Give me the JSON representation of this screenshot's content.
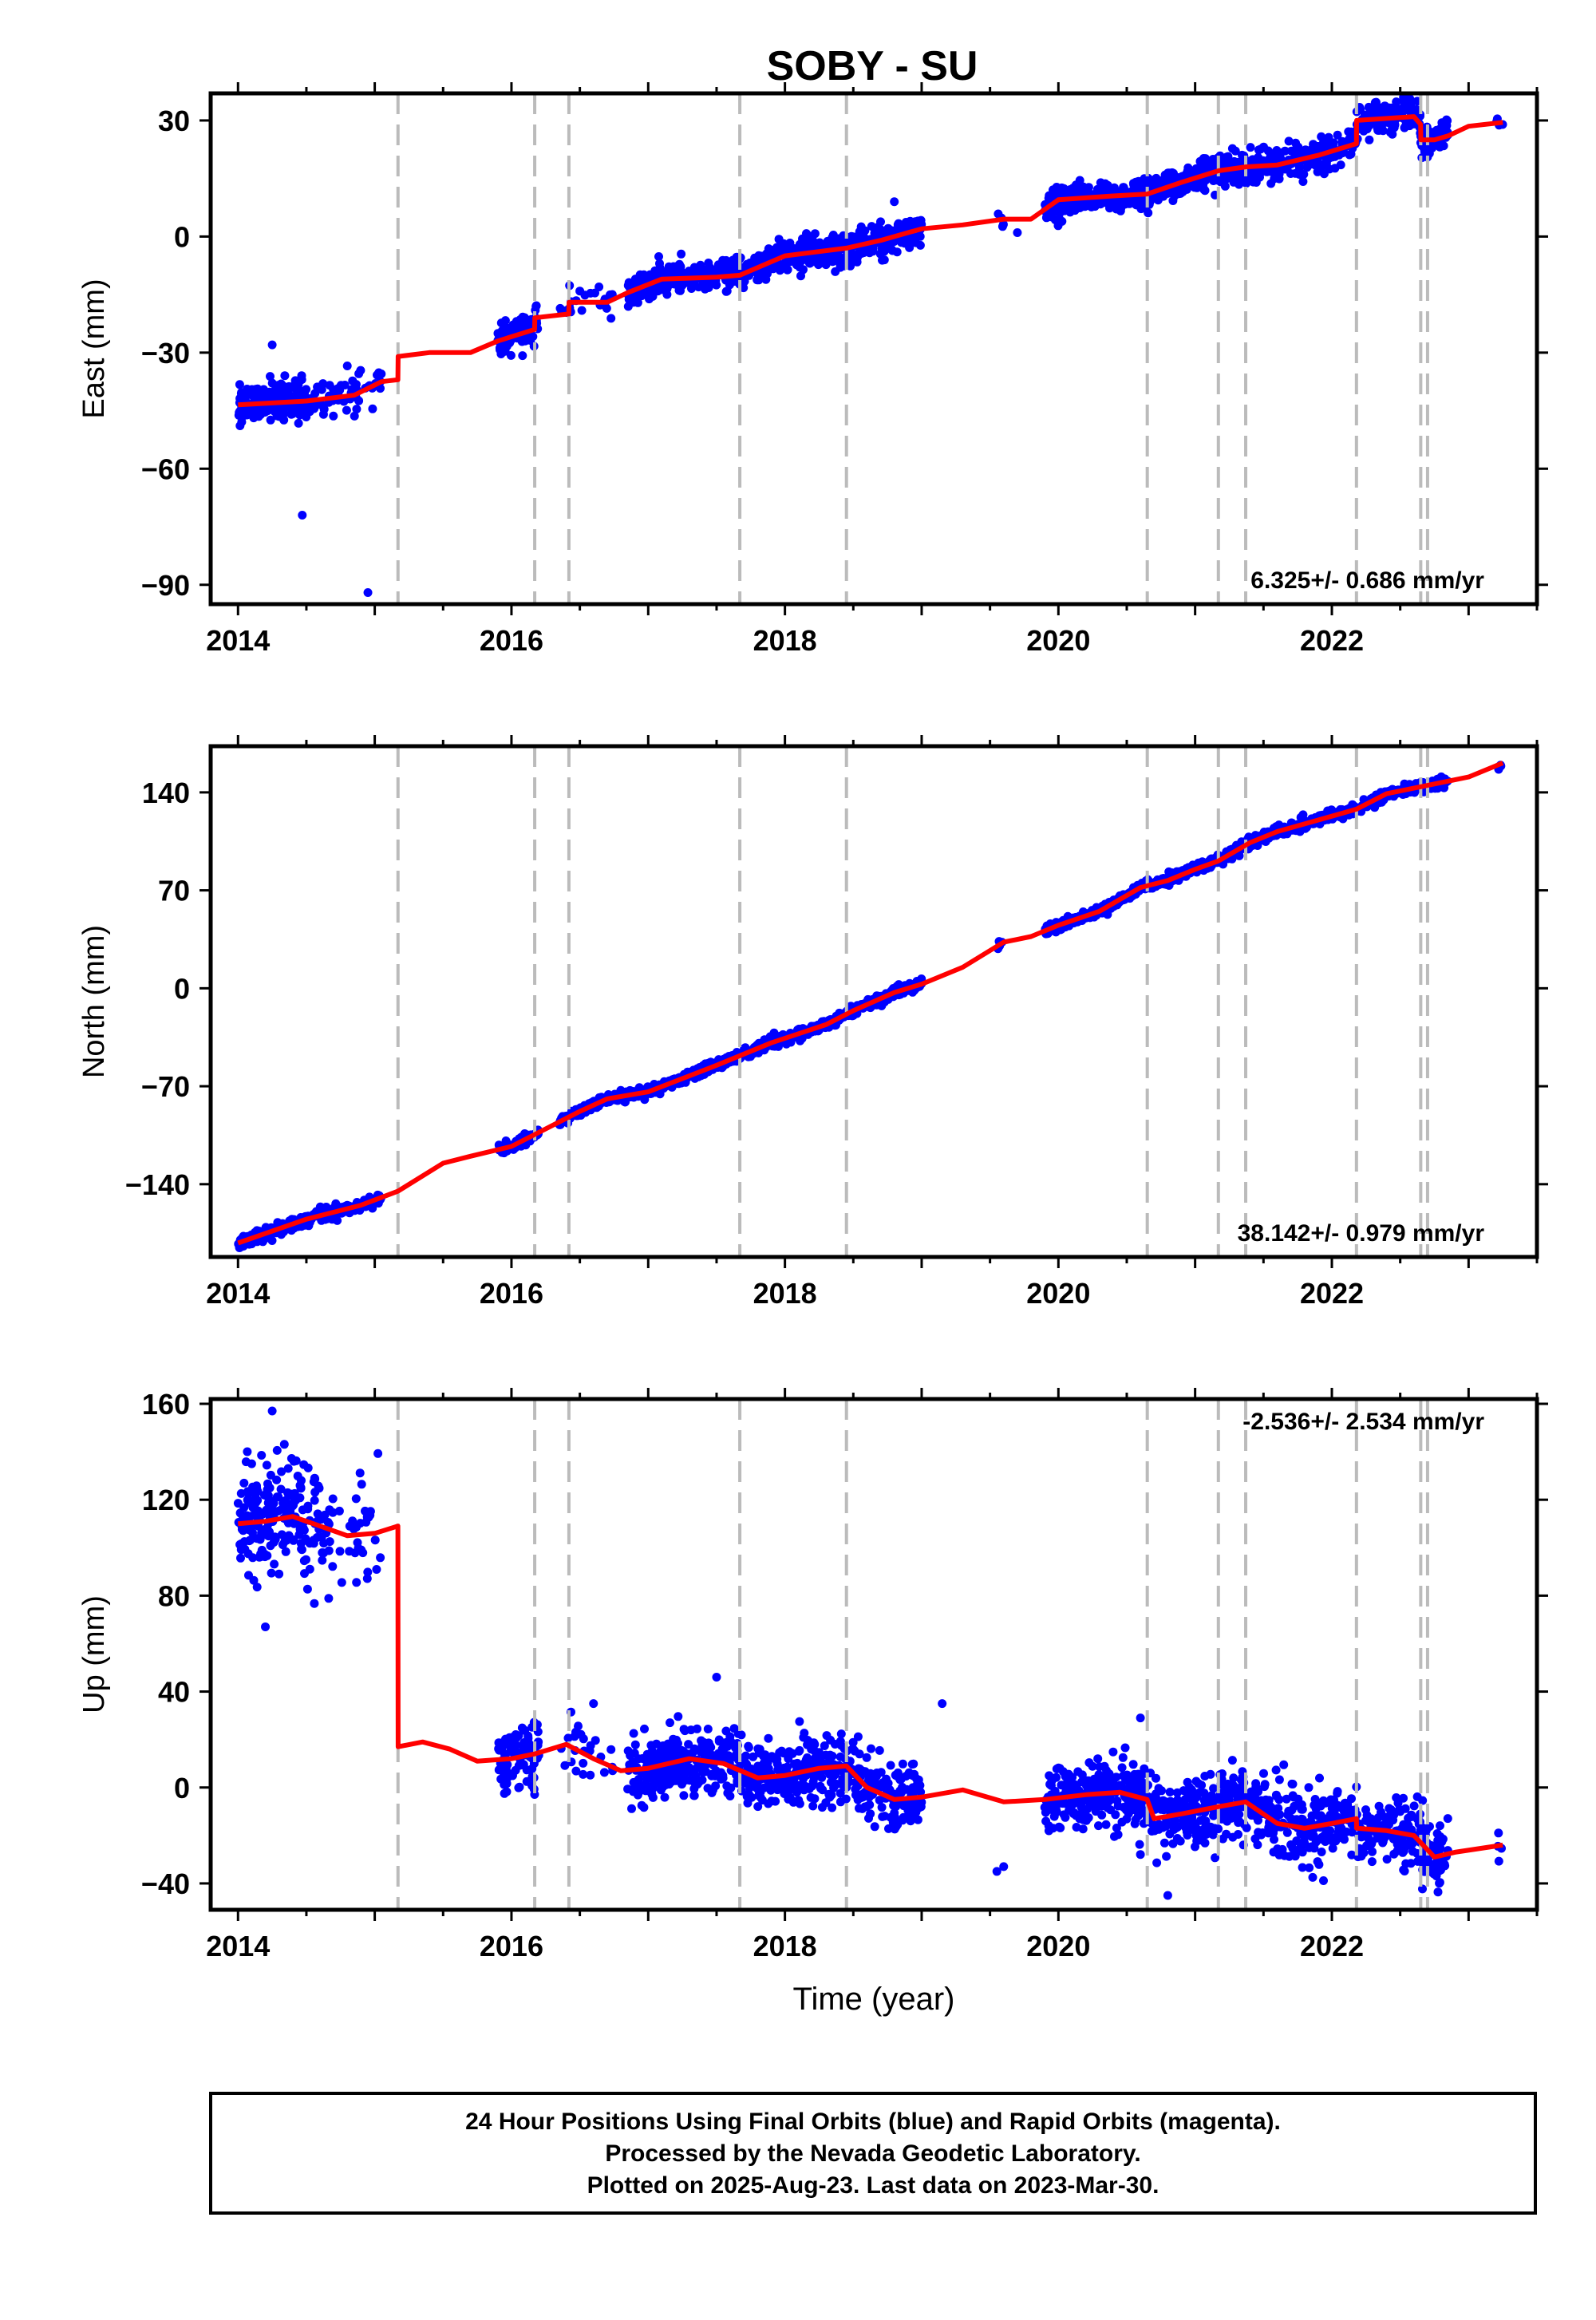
{
  "title": "SOBY - SU",
  "chart_data": [
    {
      "type": "scatter",
      "component": "east",
      "ylabel": "East (mm)",
      "yticks": [
        30,
        0,
        -30,
        -60,
        -90
      ],
      "ylim": [
        -95,
        37
      ],
      "xlim": [
        2013.8,
        2023.5
      ],
      "xticks": [
        2014,
        2016,
        2018,
        2020,
        2022
      ],
      "rate": "6.325+/- 0.686 mm/yr",
      "rate_pos": "bottom-right",
      "breaks": [
        2015.17,
        2016.17,
        2016.42,
        2017.67,
        2018.45,
        2020.65,
        2021.17,
        2021.37,
        2022.18,
        2022.65,
        2022.7
      ],
      "data_segments": [
        {
          "t0": 2014.0,
          "t1": 2015.05,
          "sparse_from": 2014.5,
          "scatter": 2.6
        },
        {
          "t0": 2015.9,
          "t1": 2016.2,
          "scatter": 2.0
        },
        {
          "t0": 2016.35,
          "t1": 2016.75,
          "sparse": true,
          "scatter": 1.8
        },
        {
          "t0": 2016.85,
          "t1": 2019.0,
          "scatter": 2.0
        },
        {
          "t0": 2019.55,
          "t1": 2019.6,
          "sparse": true,
          "scatter": 1.5
        },
        {
          "t0": 2019.9,
          "t1": 2022.85,
          "scatter": 2.0
        },
        {
          "t0": 2023.2,
          "t1": 2023.25,
          "sparse": true,
          "scatter": 2.0
        }
      ],
      "outliers": [
        {
          "x": 2014.47,
          "y": -72
        },
        {
          "x": 2014.95,
          "y": -92
        },
        {
          "x": 2014.25,
          "y": -28
        },
        {
          "x": 2018.8,
          "y": 9
        },
        {
          "x": 2019.7,
          "y": 1
        }
      ],
      "model": [
        {
          "x": 2014.0,
          "y": -43.5
        },
        {
          "x": 2014.5,
          "y": -42.5
        },
        {
          "x": 2014.85,
          "y": -41
        },
        {
          "x": 2015.05,
          "y": -37.5
        },
        {
          "x": 2015.169,
          "y": -37
        },
        {
          "x": 2015.171,
          "y": -31
        },
        {
          "x": 2015.4,
          "y": -30
        },
        {
          "x": 2015.7,
          "y": -30
        },
        {
          "x": 2015.9,
          "y": -27
        },
        {
          "x": 2016.169,
          "y": -24
        },
        {
          "x": 2016.171,
          "y": -21
        },
        {
          "x": 2016.419,
          "y": -20
        },
        {
          "x": 2016.421,
          "y": -17
        },
        {
          "x": 2016.7,
          "y": -17
        },
        {
          "x": 2016.85,
          "y": -14.5
        },
        {
          "x": 2017.1,
          "y": -11
        },
        {
          "x": 2017.5,
          "y": -10.5
        },
        {
          "x": 2017.67,
          "y": -10
        },
        {
          "x": 2018.0,
          "y": -5
        },
        {
          "x": 2018.45,
          "y": -3
        },
        {
          "x": 2018.7,
          "y": -1
        },
        {
          "x": 2019.0,
          "y": 2
        },
        {
          "x": 2019.3,
          "y": 3
        },
        {
          "x": 2019.6,
          "y": 4.5
        },
        {
          "x": 2019.8,
          "y": 4.5
        },
        {
          "x": 2020.0,
          "y": 9.5
        },
        {
          "x": 2020.4,
          "y": 10.5
        },
        {
          "x": 2020.65,
          "y": 11
        },
        {
          "x": 2020.9,
          "y": 14
        },
        {
          "x": 2021.17,
          "y": 17
        },
        {
          "x": 2021.37,
          "y": 18
        },
        {
          "x": 2021.6,
          "y": 18.5
        },
        {
          "x": 2021.9,
          "y": 21
        },
        {
          "x": 2022.18,
          "y": 24
        },
        {
          "x": 2022.181,
          "y": 30
        },
        {
          "x": 2022.6,
          "y": 31
        },
        {
          "x": 2022.649,
          "y": 29
        },
        {
          "x": 2022.651,
          "y": 25
        },
        {
          "x": 2022.75,
          "y": 25
        },
        {
          "x": 2022.85,
          "y": 26
        },
        {
          "x": 2023.0,
          "y": 28.5
        },
        {
          "x": 2023.25,
          "y": 29.5
        }
      ]
    },
    {
      "type": "scatter",
      "component": "north",
      "ylabel": "North (mm)",
      "yticks": [
        140,
        70,
        0,
        -70,
        -140
      ],
      "ylim": [
        -192,
        173
      ],
      "xlim": [
        2013.8,
        2023.5
      ],
      "xticks": [
        2014,
        2016,
        2018,
        2020,
        2022
      ],
      "rate": "38.142+/- 0.979 mm/yr",
      "rate_pos": "bottom-right",
      "breaks": [
        2015.17,
        2016.17,
        2016.42,
        2017.67,
        2018.45,
        2020.65,
        2021.17,
        2021.37,
        2022.18,
        2022.65,
        2022.7
      ],
      "data_segments": [
        {
          "t0": 2014.0,
          "t1": 2015.05,
          "scatter": 2.0
        },
        {
          "t0": 2015.9,
          "t1": 2016.2,
          "scatter": 1.8
        },
        {
          "t0": 2016.35,
          "t1": 2019.0,
          "scatter": 1.8
        },
        {
          "t0": 2019.55,
          "t1": 2019.6,
          "sparse": true,
          "scatter": 1.5
        },
        {
          "t0": 2019.9,
          "t1": 2022.85,
          "scatter": 1.8
        },
        {
          "t0": 2023.2,
          "t1": 2023.25,
          "sparse": true,
          "scatter": 2.0
        }
      ],
      "outliers": [],
      "model": [
        {
          "x": 2014.0,
          "y": -182
        },
        {
          "x": 2014.5,
          "y": -165
        },
        {
          "x": 2014.9,
          "y": -155
        },
        {
          "x": 2015.17,
          "y": -145
        },
        {
          "x": 2015.5,
          "y": -125
        },
        {
          "x": 2015.7,
          "y": -120
        },
        {
          "x": 2016.0,
          "y": -113
        },
        {
          "x": 2016.5,
          "y": -88
        },
        {
          "x": 2016.7,
          "y": -79
        },
        {
          "x": 2017.0,
          "y": -74
        },
        {
          "x": 2017.5,
          "y": -55
        },
        {
          "x": 2017.9,
          "y": -39
        },
        {
          "x": 2018.3,
          "y": -26
        },
        {
          "x": 2018.5,
          "y": -16
        },
        {
          "x": 2018.8,
          "y": -3
        },
        {
          "x": 2019.0,
          "y": 3
        },
        {
          "x": 2019.3,
          "y": 15
        },
        {
          "x": 2019.6,
          "y": 33
        },
        {
          "x": 2019.8,
          "y": 37
        },
        {
          "x": 2020.0,
          "y": 45
        },
        {
          "x": 2020.3,
          "y": 55
        },
        {
          "x": 2020.6,
          "y": 72
        },
        {
          "x": 2020.8,
          "y": 77
        },
        {
          "x": 2021.0,
          "y": 85
        },
        {
          "x": 2021.17,
          "y": 91
        },
        {
          "x": 2021.4,
          "y": 104
        },
        {
          "x": 2021.6,
          "y": 112
        },
        {
          "x": 2022.0,
          "y": 123
        },
        {
          "x": 2022.18,
          "y": 128
        },
        {
          "x": 2022.4,
          "y": 139
        },
        {
          "x": 2022.7,
          "y": 145
        },
        {
          "x": 2023.0,
          "y": 151
        },
        {
          "x": 2023.25,
          "y": 161
        }
      ]
    },
    {
      "type": "scatter",
      "component": "up",
      "ylabel": "Up (mm)",
      "yticks": [
        160,
        120,
        80,
        40,
        0,
        -40
      ],
      "ylim": [
        -51,
        162
      ],
      "xlim": [
        2013.8,
        2023.5
      ],
      "xticks": [
        2014,
        2016,
        2018,
        2020,
        2022
      ],
      "xlabel": "Time (year)",
      "rate": "-2.536+/- 2.534 mm/yr",
      "rate_pos": "top-right",
      "breaks": [
        2015.17,
        2016.17,
        2016.42,
        2017.67,
        2018.45,
        2020.65,
        2021.17,
        2021.37,
        2022.18,
        2022.65,
        2022.7
      ],
      "data_segments": [
        {
          "t0": 2014.0,
          "t1": 2015.05,
          "sparse_from": 2014.6,
          "scatter": 12
        },
        {
          "t0": 2015.9,
          "t1": 2016.2,
          "scatter": 7
        },
        {
          "t0": 2016.35,
          "t1": 2016.75,
          "sparse": true,
          "scatter": 6
        },
        {
          "t0": 2016.85,
          "t1": 2019.0,
          "scatter": 7
        },
        {
          "t0": 2019.9,
          "t1": 2022.85,
          "scatter": 7
        },
        {
          "t0": 2023.2,
          "t1": 2023.25,
          "sparse": true,
          "scatter": 6
        }
      ],
      "outliers": [
        {
          "x": 2014.25,
          "y": 157
        },
        {
          "x": 2014.1,
          "y": 135
        },
        {
          "x": 2014.2,
          "y": 67
        },
        {
          "x": 2017.5,
          "y": 46
        },
        {
          "x": 2019.15,
          "y": 35
        },
        {
          "x": 2019.6,
          "y": -33
        },
        {
          "x": 2019.55,
          "y": -35
        },
        {
          "x": 2016.6,
          "y": 35
        },
        {
          "x": 2020.6,
          "y": 29
        },
        {
          "x": 2020.8,
          "y": -45
        }
      ],
      "model": [
        {
          "x": 2014.0,
          "y": 110
        },
        {
          "x": 2014.2,
          "y": 111
        },
        {
          "x": 2014.4,
          "y": 113
        },
        {
          "x": 2014.6,
          "y": 109
        },
        {
          "x": 2014.8,
          "y": 105
        },
        {
          "x": 2015.0,
          "y": 106
        },
        {
          "x": 2015.169,
          "y": 109
        },
        {
          "x": 2015.171,
          "y": 17
        },
        {
          "x": 2015.35,
          "y": 19
        },
        {
          "x": 2015.55,
          "y": 16
        },
        {
          "x": 2015.75,
          "y": 11
        },
        {
          "x": 2016.0,
          "y": 12
        },
        {
          "x": 2016.169,
          "y": 14
        },
        {
          "x": 2016.4,
          "y": 18
        },
        {
          "x": 2016.6,
          "y": 12
        },
        {
          "x": 2016.8,
          "y": 7
        },
        {
          "x": 2017.0,
          "y": 8
        },
        {
          "x": 2017.3,
          "y": 12
        },
        {
          "x": 2017.55,
          "y": 10
        },
        {
          "x": 2017.8,
          "y": 4
        },
        {
          "x": 2018.0,
          "y": 5
        },
        {
          "x": 2018.25,
          "y": 8
        },
        {
          "x": 2018.449,
          "y": 9
        },
        {
          "x": 2018.6,
          "y": 0
        },
        {
          "x": 2018.8,
          "y": -5
        },
        {
          "x": 2019.0,
          "y": -4
        },
        {
          "x": 2019.3,
          "y": -1
        },
        {
          "x": 2019.6,
          "y": -6
        },
        {
          "x": 2019.9,
          "y": -5
        },
        {
          "x": 2020.2,
          "y": -3
        },
        {
          "x": 2020.45,
          "y": -2
        },
        {
          "x": 2020.649,
          "y": -5
        },
        {
          "x": 2020.7,
          "y": -13
        },
        {
          "x": 2020.9,
          "y": -11
        },
        {
          "x": 2021.17,
          "y": -8
        },
        {
          "x": 2021.37,
          "y": -6
        },
        {
          "x": 2021.6,
          "y": -15
        },
        {
          "x": 2021.8,
          "y": -17
        },
        {
          "x": 2022.0,
          "y": -15
        },
        {
          "x": 2022.18,
          "y": -13
        },
        {
          "x": 2022.181,
          "y": -17
        },
        {
          "x": 2022.4,
          "y": -18
        },
        {
          "x": 2022.6,
          "y": -20
        },
        {
          "x": 2022.75,
          "y": -29
        },
        {
          "x": 2022.9,
          "y": -27
        },
        {
          "x": 2023.25,
          "y": -24
        }
      ]
    }
  ],
  "footer": {
    "line1": "24 Hour Positions Using Final Orbits (blue) and Rapid Orbits (magenta).",
    "line2": "Processed by the Nevada Geodetic Laboratory.",
    "line3": "Plotted on 2025-Aug-23. Last data on 2023-Mar-30."
  },
  "colors": {
    "points": "#0000ff",
    "model": "#ff0000",
    "breaks": "#bbbbbb",
    "axes": "#000000"
  }
}
